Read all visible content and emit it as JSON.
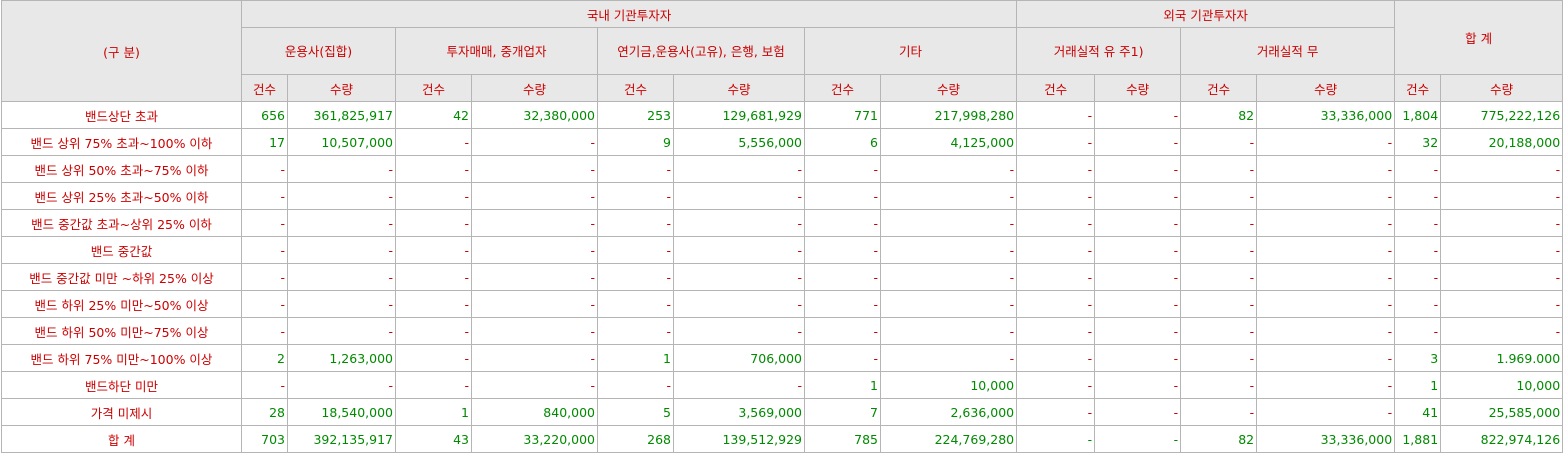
{
  "header": {
    "category_label": "(구 분)",
    "domestic_group": "국내 기관투자자",
    "foreign_group": "외국 기관투자자",
    "total_label": "합 계",
    "sub_groups": [
      "운용사(집합)",
      "투자매매, 중개업자",
      "연기금,운용사(고유), 은행, 보험",
      "기타",
      "거래실적 유 주1)",
      "거래실적 무"
    ],
    "count_label": "건수",
    "qty_label": "수량"
  },
  "rows": [
    {
      "label": "밴드상단 초과",
      "cells": [
        "656",
        "361,825,917",
        "42",
        "32,380,000",
        "253",
        "129,681,929",
        "771",
        "217,998,280",
        "-",
        "-",
        "82",
        "33,336,000",
        "1,804",
        "775,222,126"
      ]
    },
    {
      "label": "밴드 상위 75% 초과~100% 이하",
      "cells": [
        "17",
        "10,507,000",
        "-",
        "-",
        "9",
        "5,556,000",
        "6",
        "4,125,000",
        "-",
        "-",
        "-",
        "-",
        "32",
        "20,188,000"
      ]
    },
    {
      "label": "밴드 상위 50% 초과~75% 이하",
      "cells": [
        "-",
        "-",
        "-",
        "-",
        "-",
        "-",
        "-",
        "-",
        "-",
        "-",
        "-",
        "-",
        "-",
        "-"
      ]
    },
    {
      "label": "밴드 상위 25% 초과~50% 이하",
      "cells": [
        "-",
        "-",
        "-",
        "-",
        "-",
        "-",
        "-",
        "-",
        "-",
        "-",
        "-",
        "-",
        "-",
        "-"
      ]
    },
    {
      "label": "밴드 중간값 초과~상위 25% 이하",
      "cells": [
        "-",
        "-",
        "-",
        "-",
        "-",
        "-",
        "-",
        "-",
        "-",
        "-",
        "-",
        "-",
        "-",
        "-"
      ]
    },
    {
      "label": "밴드 중간값",
      "cells": [
        "-",
        "-",
        "-",
        "-",
        "-",
        "-",
        "-",
        "-",
        "-",
        "-",
        "-",
        "-",
        "-",
        "-"
      ]
    },
    {
      "label": "밴드 중간값 미만 ~하위 25% 이상",
      "cells": [
        "-",
        "-",
        "-",
        "-",
        "-",
        "-",
        "-",
        "-",
        "-",
        "-",
        "-",
        "-",
        "-",
        "-"
      ]
    },
    {
      "label": "밴드 하위 25% 미만~50% 이상",
      "cells": [
        "-",
        "-",
        "-",
        "-",
        "-",
        "-",
        "-",
        "-",
        "-",
        "-",
        "-",
        "-",
        "-",
        "-"
      ]
    },
    {
      "label": "밴드 하위 50% 미만~75% 이상",
      "cells": [
        "-",
        "-",
        "-",
        "-",
        "-",
        "-",
        "-",
        "-",
        "-",
        "-",
        "-",
        "-",
        "-",
        "-"
      ]
    },
    {
      "label": "밴드 하위 75% 미만~100% 이상",
      "cells": [
        "2",
        "1,263,000",
        "-",
        "-",
        "1",
        "706,000",
        "-",
        "-",
        "-",
        "-",
        "-",
        "-",
        "3",
        "1.969.000"
      ]
    },
    {
      "label": "밴드하단 미만",
      "cells": [
        "-",
        "-",
        "-",
        "-",
        "-",
        "-",
        "1",
        "10,000",
        "-",
        "-",
        "-",
        "-",
        "1",
        "10,000"
      ]
    },
    {
      "label": "가격 미제시",
      "cells": [
        "28",
        "18,540,000",
        "1",
        "840,000",
        "5",
        "3,569,000",
        "7",
        "2,636,000",
        "-",
        "-",
        "-",
        "-",
        "41",
        "25,585,000"
      ]
    }
  ],
  "total_row": {
    "label": "합 계",
    "cells": [
      "703",
      "392,135,917",
      "43",
      "33,220,000",
      "268",
      "139,512,929",
      "785",
      "224,769,280",
      "-",
      "-",
      "82",
      "33,336,000",
      "1,881",
      "822,974,126"
    ]
  },
  "colors": {
    "header_bg": "#e8e8e8",
    "label_red": "#cc0000",
    "total_green": "#008a00",
    "border": "#b5b5b5"
  }
}
